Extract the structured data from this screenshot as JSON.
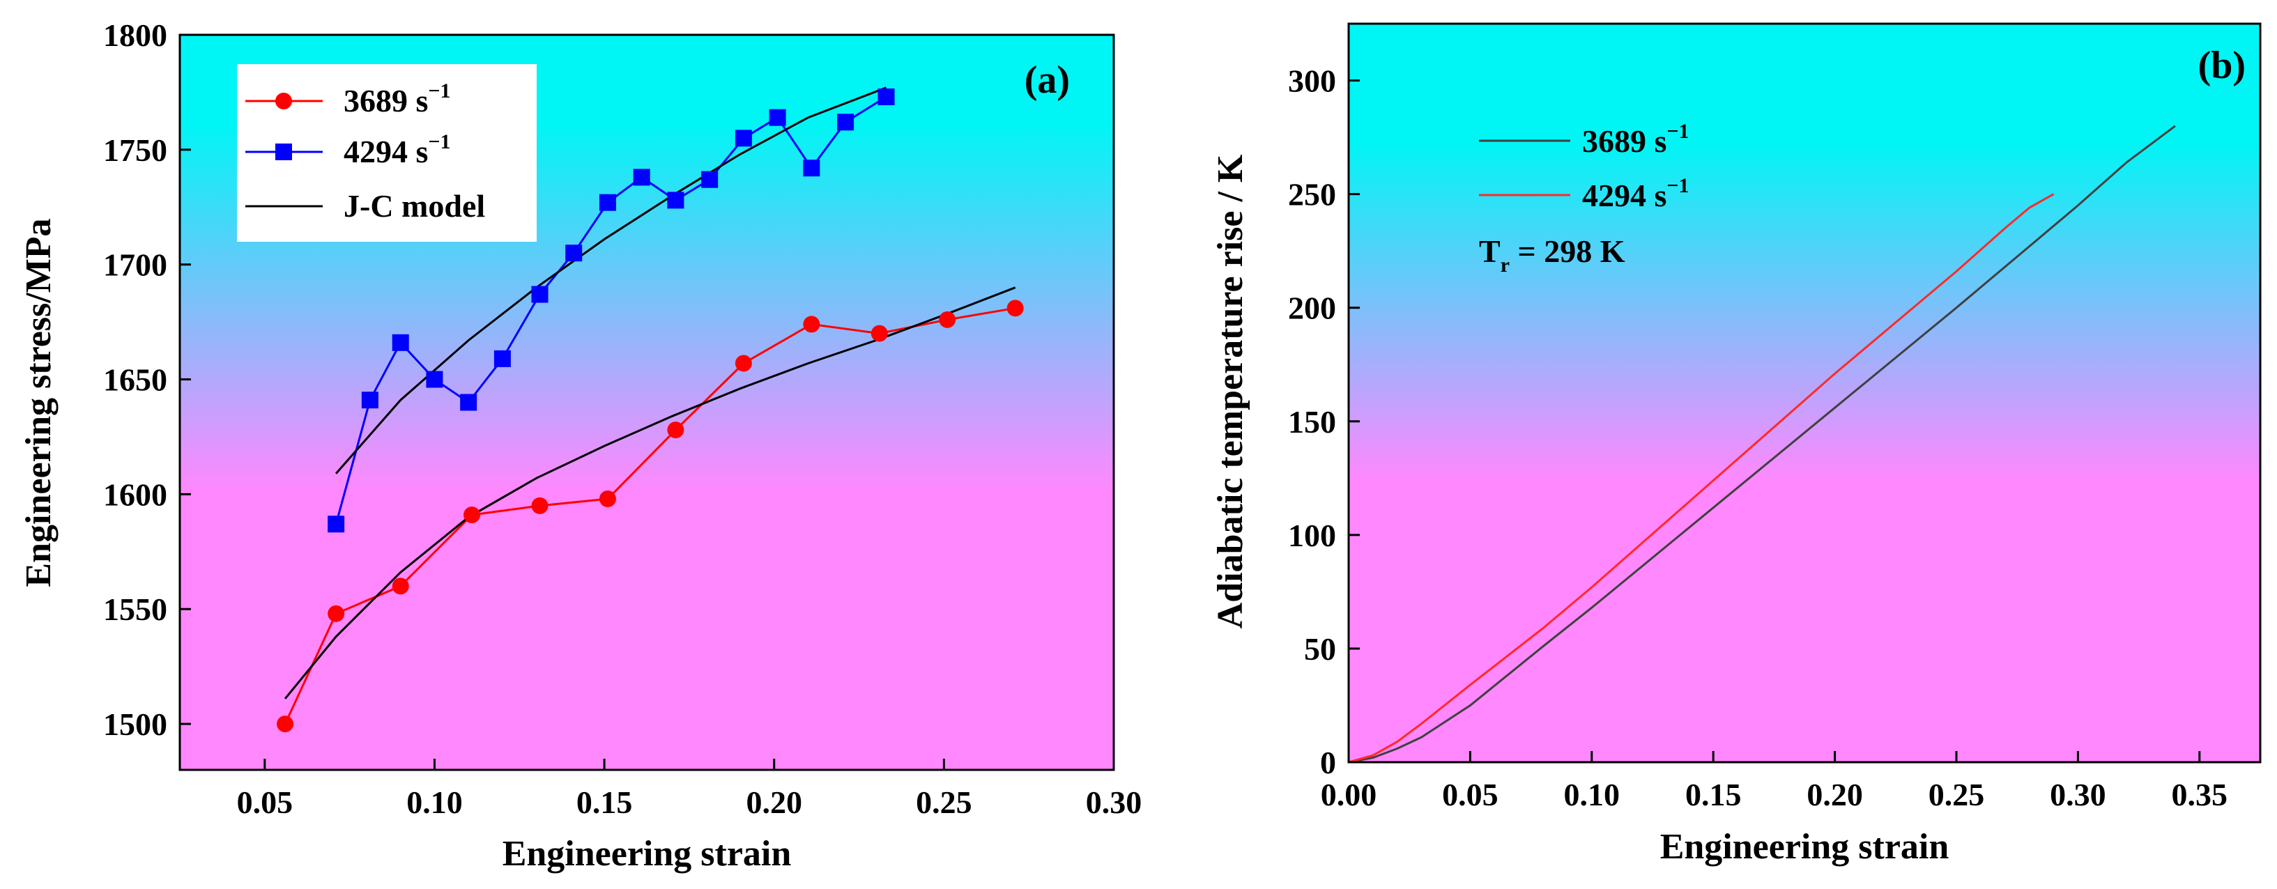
{
  "chart_data": [
    {
      "id": "a",
      "type": "line",
      "panel_label": "(a)",
      "xlabel": "Engineering strain",
      "ylabel": "Engineering stress/MPa",
      "xlim": [
        0.025,
        0.3
      ],
      "ylim": [
        1480,
        1800
      ],
      "xticks": [
        0.05,
        0.1,
        0.15,
        0.2,
        0.25,
        0.3
      ],
      "xtick_labels": [
        "0.05",
        "0.10",
        "0.15",
        "0.20",
        "0.25",
        "0.30"
      ],
      "yticks": [
        1500,
        1550,
        1600,
        1650,
        1700,
        1750,
        1800
      ],
      "ytick_labels": [
        "1500",
        "1550",
        "1600",
        "1650",
        "1700",
        "1750",
        "1800"
      ],
      "background": {
        "top": "#00f5f5",
        "bottom": "#ff88ff"
      },
      "legend_position": "top-left",
      "series": [
        {
          "name": "3689 s",
          "superscript": "−1",
          "color": "#ff0000",
          "marker": "circle",
          "x": [
            0.056,
            0.071,
            0.09,
            0.111,
            0.131,
            0.151,
            0.171,
            0.191,
            0.211,
            0.231,
            0.251,
            0.271
          ],
          "y": [
            1500,
            1548,
            1560,
            1591,
            1595,
            1598,
            1628,
            1657,
            1674,
            1670,
            1676,
            1681
          ]
        },
        {
          "name": "4294 s",
          "superscript": "−1",
          "color": "#0000ff",
          "marker": "square",
          "x": [
            0.071,
            0.081,
            0.09,
            0.1,
            0.11,
            0.12,
            0.131,
            0.141,
            0.151,
            0.161,
            0.171,
            0.181,
            0.191,
            0.201,
            0.211,
            0.221,
            0.233
          ],
          "y": [
            1587,
            1641,
            1666,
            1650,
            1640,
            1659,
            1687,
            1705,
            1727,
            1738,
            1728,
            1737,
            1755,
            1764,
            1742,
            1762,
            1773
          ]
        },
        {
          "name": "J-C model",
          "color": "#000000",
          "marker": "none",
          "curves": [
            {
              "x": [
                0.056,
                0.071,
                0.09,
                0.11,
                0.13,
                0.15,
                0.17,
                0.19,
                0.21,
                0.23,
                0.25,
                0.271
              ],
              "y": [
                1511,
                1538,
                1566,
                1590,
                1607,
                1621,
                1634,
                1646,
                1657,
                1667,
                1678,
                1690
              ]
            },
            {
              "x": [
                0.071,
                0.09,
                0.11,
                0.13,
                0.15,
                0.17,
                0.19,
                0.21,
                0.233
              ],
              "y": [
                1609,
                1641,
                1667,
                1690,
                1711,
                1730,
                1748,
                1764,
                1777
              ]
            }
          ]
        }
      ]
    },
    {
      "id": "b",
      "type": "line",
      "panel_label": "(b)",
      "xlabel": "Engineering strain",
      "ylabel": "Adiabatic temperature rise / K",
      "xlim": [
        0.0,
        0.375
      ],
      "ylim": [
        0,
        325
      ],
      "xticks": [
        0.0,
        0.05,
        0.1,
        0.15,
        0.2,
        0.25,
        0.3,
        0.35
      ],
      "xtick_labels": [
        "0.00",
        "0.05",
        "0.10",
        "0.15",
        "0.20",
        "0.25",
        "0.30",
        "0.35"
      ],
      "yticks": [
        0,
        50,
        100,
        150,
        200,
        250,
        300
      ],
      "ytick_labels": [
        "0",
        "50",
        "100",
        "150",
        "200",
        "250",
        "300"
      ],
      "background": {
        "top": "#00f5f5",
        "bottom": "#ff88ff"
      },
      "legend_position": "top-left",
      "annotation": {
        "text": "T",
        "subscript": "r",
        "suffix": " = 298 K"
      },
      "series": [
        {
          "name": "3689 s",
          "superscript": "−1",
          "color": "#404040",
          "x": [
            0.0,
            0.01,
            0.02,
            0.03,
            0.05,
            0.08,
            0.1,
            0.15,
            0.2,
            0.25,
            0.3,
            0.32,
            0.34
          ],
          "y": [
            0,
            2,
            6,
            11,
            25,
            51,
            68,
            112,
            156,
            200,
            245,
            264,
            280
          ]
        },
        {
          "name": "4294 s",
          "superscript": "−1",
          "color": "#ff2a2a",
          "x": [
            0.0,
            0.01,
            0.02,
            0.03,
            0.05,
            0.08,
            0.1,
            0.15,
            0.2,
            0.25,
            0.27,
            0.28,
            0.29
          ],
          "y": [
            0,
            3,
            9,
            17,
            34,
            59,
            77,
            124,
            171,
            216,
            235,
            244,
            250
          ]
        }
      ]
    }
  ]
}
